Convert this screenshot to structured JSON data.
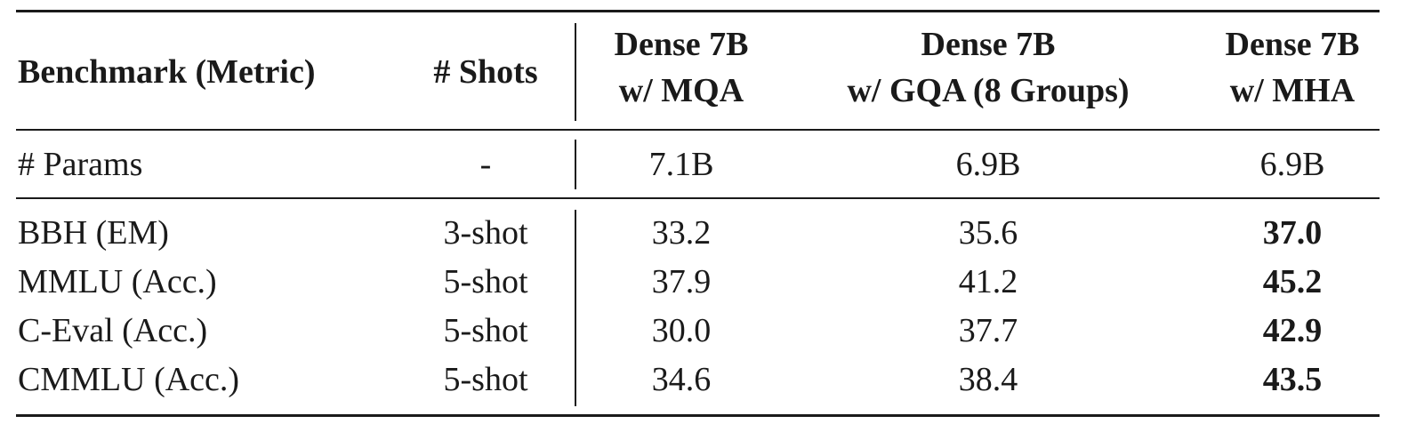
{
  "table": {
    "headers": {
      "benchmark": "Benchmark (Metric)",
      "shots": "# Shots",
      "mqa_line1": "Dense 7B",
      "mqa_line2": "w/ MQA",
      "gqa_line1": "Dense 7B",
      "gqa_line2": "w/ GQA (8 Groups)",
      "mha_line1": "Dense 7B",
      "mha_line2": "w/ MHA"
    },
    "params_row": {
      "label": "# Params",
      "shots": "-",
      "mqa": "7.1B",
      "gqa": "6.9B",
      "mha": "6.9B"
    },
    "rows": [
      {
        "label": "BBH (EM)",
        "shots": "3-shot",
        "mqa": "33.2",
        "gqa": "35.6",
        "mha": "37.0"
      },
      {
        "label": "MMLU (Acc.)",
        "shots": "5-shot",
        "mqa": "37.9",
        "gqa": "41.2",
        "mha": "45.2"
      },
      {
        "label": "C-Eval (Acc.)",
        "shots": "5-shot",
        "mqa": "30.0",
        "gqa": "37.7",
        "mha": "42.9"
      },
      {
        "label": "CMMLU (Acc.)",
        "shots": "5-shot",
        "mqa": "34.6",
        "gqa": "38.4",
        "mha": "43.5"
      }
    ]
  }
}
